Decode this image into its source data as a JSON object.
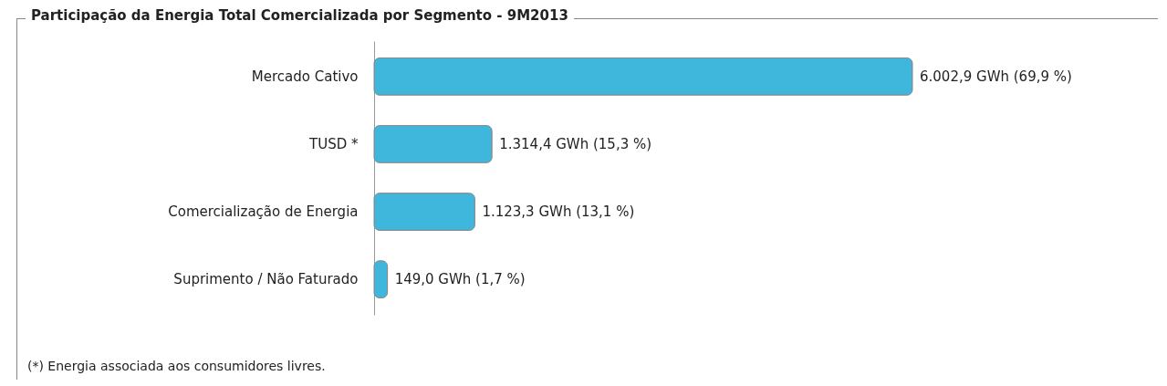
{
  "chart_data": {
    "type": "bar",
    "orientation": "horizontal",
    "title": "Participação da Energia Total Comercializada por Segmento - 9M2013",
    "categories": [
      "Mercado Cativo",
      "TUSD *",
      "Comercialização de Energia",
      "Suprimento / Não Faturado"
    ],
    "values": [
      6002.9,
      1314.4,
      1123.3,
      149.0
    ],
    "value_labels": [
      "6.002,9 GWh  (69,9 %)",
      "1.314,4 GWh  (15,3 %)",
      "1.123,3 GWh  (13,1 %)",
      "149,0 GWh  (1,7 %)"
    ],
    "color": "#3fb6dc",
    "annotations": [
      "(*) Energia associada aos consumidores livres."
    ]
  }
}
